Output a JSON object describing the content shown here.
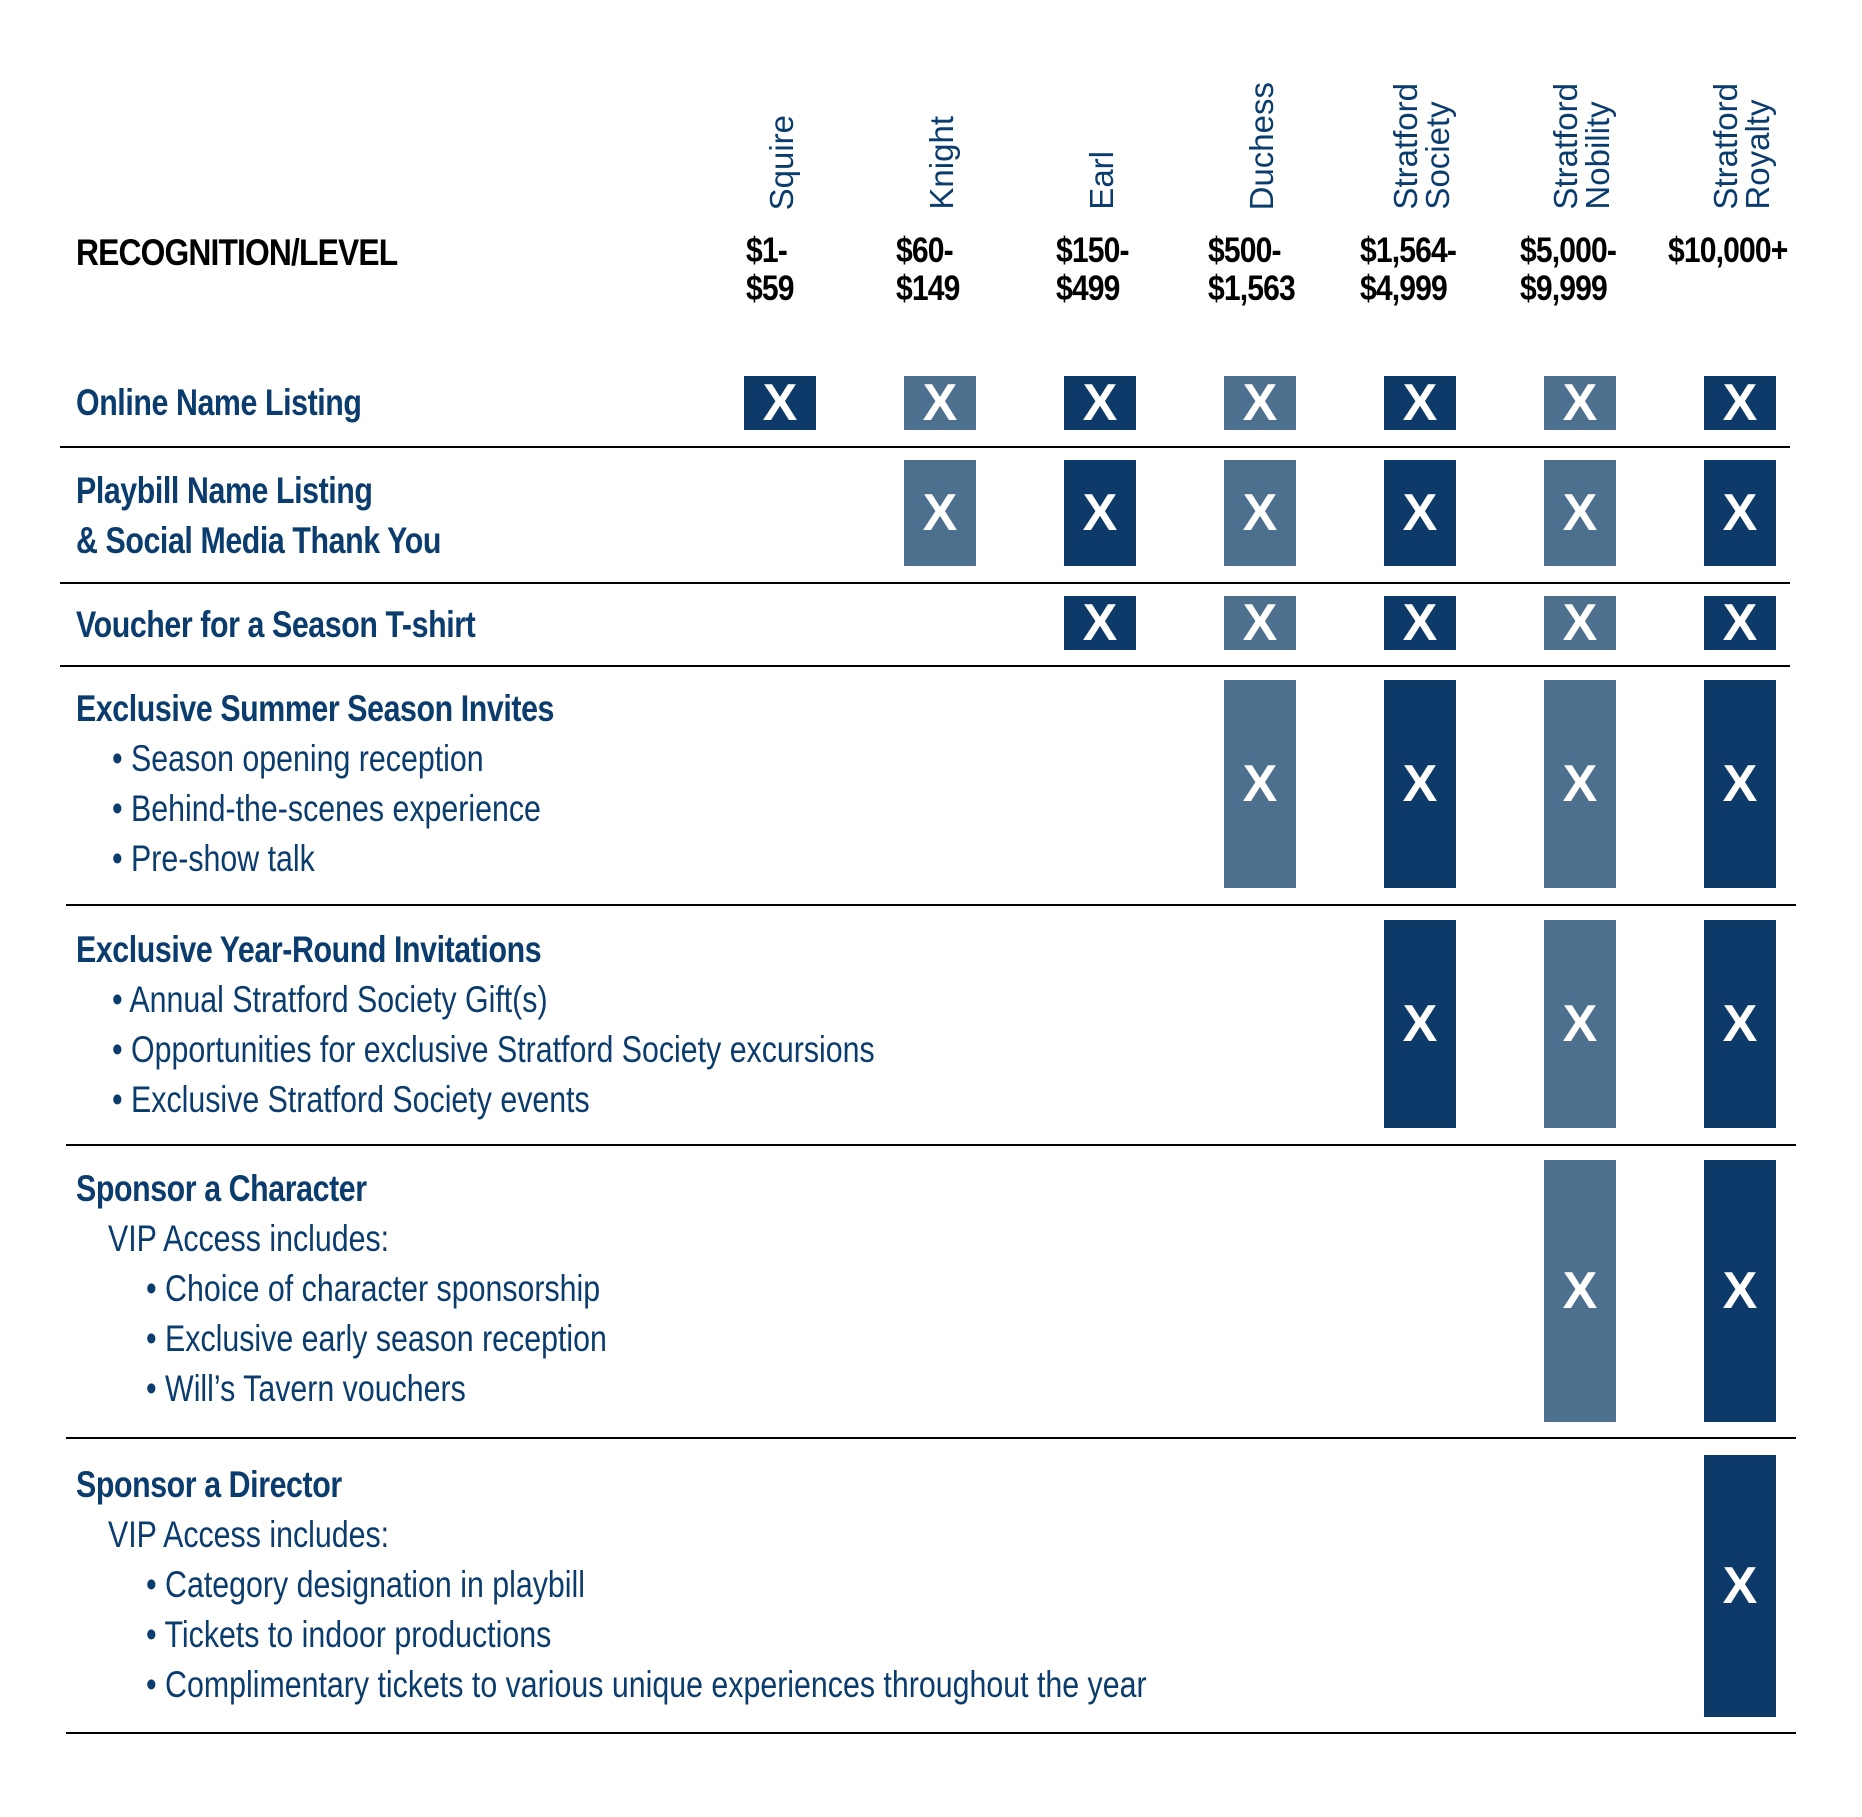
{
  "header": {
    "title": "RECOGNITION/LEVEL"
  },
  "levels": [
    {
      "name": "Squire",
      "range": "$1-\n$59"
    },
    {
      "name": "Knight",
      "range": "$60-\n$149"
    },
    {
      "name": "Earl",
      "range": "$150-\n$499"
    },
    {
      "name": "Duchess",
      "range": "$500-\n$1,563"
    },
    {
      "name": "Stratford\nSociety",
      "range": "$1,564-\n$4,999"
    },
    {
      "name": "Stratford\nNobility",
      "range": "$5,000-\n$9,999"
    },
    {
      "name": "Stratford\nRoyalty",
      "range": "$10,000+"
    }
  ],
  "mark_symbol": "X",
  "colors": {
    "text_blue": "#0b3c6e",
    "mark_dark": "#0d3a68",
    "mark_light": "#4d708e"
  },
  "rows": [
    {
      "title": "Online Name Listing",
      "lines": [],
      "included_from_level": 1
    },
    {
      "title": "Playbill Name Listing\n& Social Media Thank You",
      "lines": [],
      "included_from_level": 2
    },
    {
      "title": "Voucher for a Season T-shirt",
      "lines": [],
      "included_from_level": 3
    },
    {
      "title": "Exclusive Summer Season Invites",
      "lines": [
        "• Season opening reception",
        "• Behind-the-scenes experience",
        "• Pre-show talk"
      ],
      "included_from_level": 4
    },
    {
      "title": "Exclusive Year-Round Invitations",
      "lines": [
        "• Annual Stratford Society Gift(s)",
        "• Opportunities for exclusive Stratford Society excursions",
        "• Exclusive Stratford Society events"
      ],
      "included_from_level": 5
    },
    {
      "title": "Sponsor a Character",
      "lines": [
        "VIP Access includes:",
        "• Choice of character sponsorship",
        "• Exclusive early season reception",
        "• Will’s Tavern vouchers"
      ],
      "included_from_level": 6
    },
    {
      "title": "Sponsor a Director",
      "lines": [
        "VIP Access includes:",
        "• Category designation in playbill",
        "• Tickets to indoor productions",
        "• Complimentary tickets to various unique experiences throughout the year"
      ],
      "included_from_level": 7
    }
  ]
}
